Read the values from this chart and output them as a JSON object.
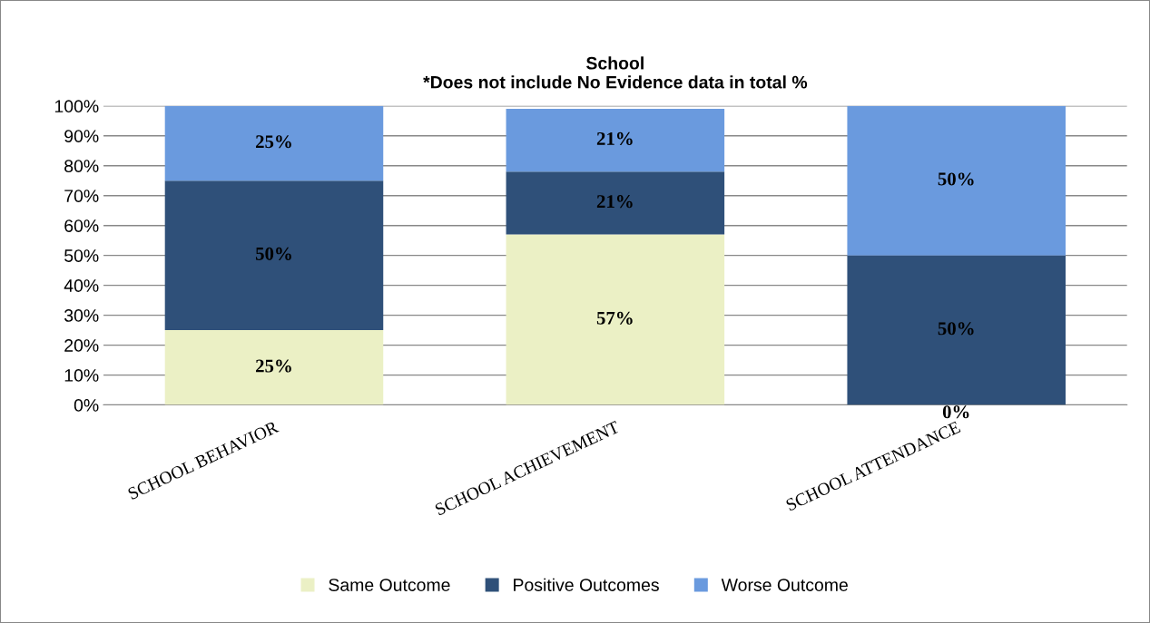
{
  "chart_data": {
    "type": "bar",
    "stacked": true,
    "title": "School\n*Does not include No Evidence data in total %",
    "categories": [
      "SCHOOL BEHAVIOR",
      "SCHOOL ACHIEVEMENT",
      "SCHOOL ATTENDANCE"
    ],
    "series": [
      {
        "name": "Same Outcome",
        "color": "#ebf0c5",
        "values": [
          25,
          57,
          0
        ]
      },
      {
        "name": "Positive Outcomes",
        "color": "#2f5079",
        "values": [
          50,
          21,
          50
        ]
      },
      {
        "name": "Worse Outcome",
        "color": "#6a9ade",
        "values": [
          25,
          21,
          50
        ]
      }
    ],
    "ylim": [
      0,
      100
    ],
    "yticks": [
      {
        "value": 0,
        "label": "0%"
      },
      {
        "value": 10,
        "label": "10%"
      },
      {
        "value": 20,
        "label": "20%"
      },
      {
        "value": 30,
        "label": "30%"
      },
      {
        "value": 40,
        "label": "40%"
      },
      {
        "value": 50,
        "label": "50%"
      },
      {
        "value": 60,
        "label": "60%"
      },
      {
        "value": 70,
        "label": "70%"
      },
      {
        "value": 80,
        "label": "80%"
      },
      {
        "value": 90,
        "label": "90%"
      },
      {
        "value": 100,
        "label": "100%"
      }
    ],
    "value_labels": [
      [
        "25%",
        "57%",
        "0%"
      ],
      [
        "50%",
        "21%",
        "50%"
      ],
      [
        "25%",
        "21%",
        "50%"
      ]
    ],
    "grid": "y",
    "legend": "bottom"
  }
}
